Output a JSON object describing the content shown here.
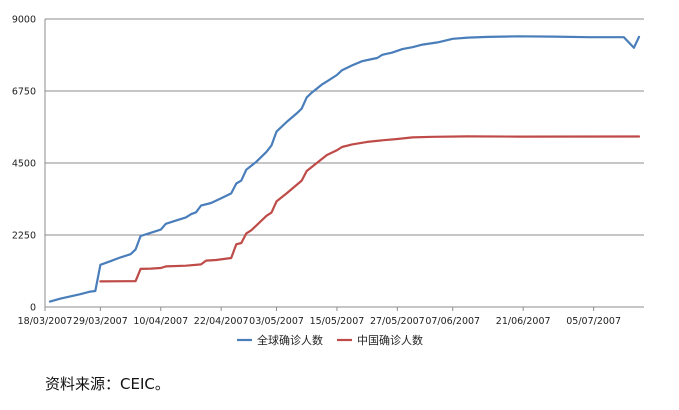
{
  "chart_data": {
    "type": "line",
    "title": "",
    "xlabel": "",
    "ylabel": "",
    "ylim": [
      0,
      9000
    ],
    "yticks": [
      0,
      2250,
      4500,
      6750,
      9000
    ],
    "ytick_labels": [
      "0",
      "2250",
      "4500",
      "6750",
      "9000"
    ],
    "xlim": [
      "2007-03-18",
      "2007-07-15"
    ],
    "xticks": [
      "2007-03-18",
      "2007-03-29",
      "2007-04-10",
      "2007-04-22",
      "2007-05-03",
      "2007-05-15",
      "2007-05-27",
      "2007-06-07",
      "2007-06-21",
      "2007-07-05"
    ],
    "xtick_labels": [
      "18/03/2007",
      "29/03/2007",
      "10/04/2007",
      "22/04/2007",
      "03/05/2007",
      "15/05/2007",
      "27/05/2007",
      "07/06/2007",
      "21/06/2007",
      "05/07/2007"
    ],
    "grid": "horizontal",
    "legend_position": "bottom",
    "series": [
      {
        "name": "全球确诊人数",
        "color": "#4a7ebb",
        "points": [
          [
            "2007-03-19",
            170
          ],
          [
            "2007-03-21",
            260
          ],
          [
            "2007-03-23",
            330
          ],
          [
            "2007-03-25",
            400
          ],
          [
            "2007-03-27",
            480
          ],
          [
            "2007-03-28",
            500
          ],
          [
            "2007-03-29",
            1320
          ],
          [
            "2007-03-31",
            1430
          ],
          [
            "2007-04-02",
            1550
          ],
          [
            "2007-04-04",
            1650
          ],
          [
            "2007-04-05",
            1800
          ],
          [
            "2007-04-06",
            2220
          ],
          [
            "2007-04-08",
            2320
          ],
          [
            "2007-04-10",
            2420
          ],
          [
            "2007-04-11",
            2600
          ],
          [
            "2007-04-13",
            2700
          ],
          [
            "2007-04-15",
            2800
          ],
          [
            "2007-04-16",
            2900
          ],
          [
            "2007-04-17",
            2960
          ],
          [
            "2007-04-18",
            3170
          ],
          [
            "2007-04-20",
            3250
          ],
          [
            "2007-04-22",
            3400
          ],
          [
            "2007-04-24",
            3550
          ],
          [
            "2007-04-25",
            3860
          ],
          [
            "2007-04-26",
            3950
          ],
          [
            "2007-04-27",
            4290
          ],
          [
            "2007-04-29",
            4540
          ],
          [
            "2007-05-01",
            4850
          ],
          [
            "2007-05-02",
            5050
          ],
          [
            "2007-05-03",
            5480
          ],
          [
            "2007-05-05",
            5780
          ],
          [
            "2007-05-07",
            6050
          ],
          [
            "2007-05-08",
            6200
          ],
          [
            "2007-05-09",
            6550
          ],
          [
            "2007-05-10",
            6700
          ],
          [
            "2007-05-12",
            6950
          ],
          [
            "2007-05-13",
            7050
          ],
          [
            "2007-05-15",
            7250
          ],
          [
            "2007-05-16",
            7400
          ],
          [
            "2007-05-18",
            7550
          ],
          [
            "2007-05-20",
            7680
          ],
          [
            "2007-05-22",
            7750
          ],
          [
            "2007-05-23",
            7780
          ],
          [
            "2007-05-24",
            7880
          ],
          [
            "2007-05-26",
            7950
          ],
          [
            "2007-05-28",
            8060
          ],
          [
            "2007-05-30",
            8120
          ],
          [
            "2007-06-01",
            8200
          ],
          [
            "2007-06-04",
            8270
          ],
          [
            "2007-06-07",
            8380
          ],
          [
            "2007-06-10",
            8420
          ],
          [
            "2007-06-14",
            8440
          ],
          [
            "2007-06-20",
            8460
          ],
          [
            "2007-06-27",
            8450
          ],
          [
            "2007-07-04",
            8430
          ],
          [
            "2007-07-11",
            8430
          ],
          [
            "2007-07-13",
            8100
          ],
          [
            "2007-07-14",
            8440
          ]
        ]
      },
      {
        "name": "中国确诊人数",
        "color": "#be4b48",
        "points": [
          [
            "2007-03-29",
            800
          ],
          [
            "2007-04-05",
            810
          ],
          [
            "2007-04-06",
            1190
          ],
          [
            "2007-04-08",
            1200
          ],
          [
            "2007-04-10",
            1220
          ],
          [
            "2007-04-11",
            1270
          ],
          [
            "2007-04-15",
            1290
          ],
          [
            "2007-04-18",
            1330
          ],
          [
            "2007-04-19",
            1450
          ],
          [
            "2007-04-21",
            1470
          ],
          [
            "2007-04-24",
            1530
          ],
          [
            "2007-04-25",
            1960
          ],
          [
            "2007-04-26",
            2000
          ],
          [
            "2007-04-27",
            2300
          ],
          [
            "2007-04-28",
            2400
          ],
          [
            "2007-05-01",
            2850
          ],
          [
            "2007-05-02",
            2950
          ],
          [
            "2007-05-03",
            3300
          ],
          [
            "2007-05-05",
            3550
          ],
          [
            "2007-05-08",
            3950
          ],
          [
            "2007-05-09",
            4250
          ],
          [
            "2007-05-11",
            4500
          ],
          [
            "2007-05-13",
            4750
          ],
          [
            "2007-05-15",
            4900
          ],
          [
            "2007-05-16",
            5000
          ],
          [
            "2007-05-18",
            5080
          ],
          [
            "2007-05-21",
            5160
          ],
          [
            "2007-05-24",
            5210
          ],
          [
            "2007-05-27",
            5250
          ],
          [
            "2007-05-30",
            5300
          ],
          [
            "2007-06-03",
            5320
          ],
          [
            "2007-06-10",
            5330
          ],
          [
            "2007-06-20",
            5326
          ],
          [
            "2007-07-14",
            5327
          ]
        ]
      }
    ]
  },
  "source_note": "资料来源：CEIC。"
}
